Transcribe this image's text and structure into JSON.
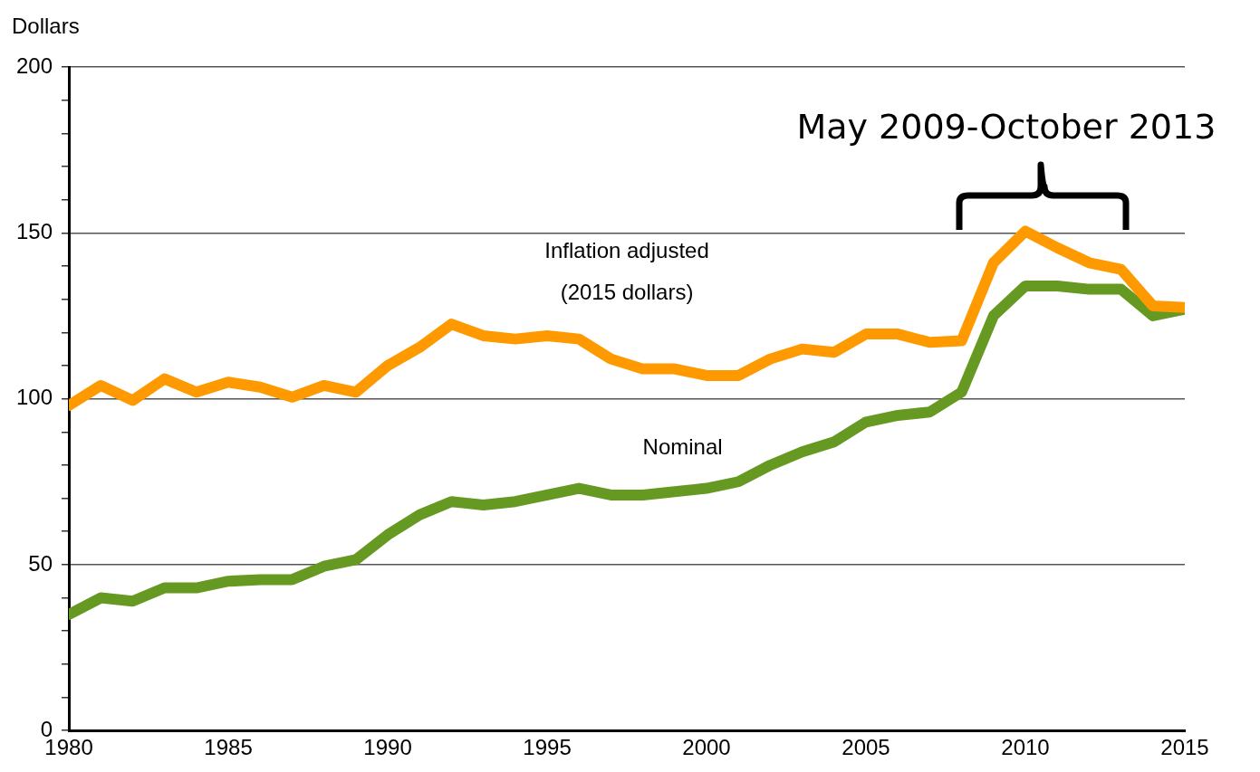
{
  "chart_data": {
    "type": "line",
    "ylabel": "Dollars",
    "annotations": [
      "May 2009-October 2013"
    ],
    "x": [
      1980,
      1981,
      1982,
      1983,
      1984,
      1985,
      1986,
      1987,
      1988,
      1989,
      1990,
      1991,
      1992,
      1993,
      1994,
      1995,
      1996,
      1997,
      1998,
      1999,
      2000,
      2001,
      2002,
      2003,
      2004,
      2005,
      2006,
      2007,
      2008,
      2009,
      2010,
      2011,
      2012,
      2013,
      2014,
      2015
    ],
    "series": [
      {
        "name": "Inflation adjusted (2015 dollars)",
        "color": "#ff9900",
        "values": [
          98,
          104,
          99.5,
          106,
          102,
          105,
          103.5,
          100.5,
          104,
          102,
          110,
          115.5,
          122.5,
          119,
          118,
          119,
          118,
          112,
          109,
          109,
          107,
          107,
          112,
          115,
          114,
          119.5,
          119.5,
          117,
          117.5,
          141,
          150.5,
          145.5,
          141,
          139,
          128,
          127.5
        ]
      },
      {
        "name": "Nominal",
        "color": "#669922",
        "values": [
          35,
          40,
          39,
          43,
          43,
          45,
          45.5,
          45.5,
          49.5,
          51.5,
          59,
          65,
          69,
          68,
          69,
          71,
          73,
          71,
          71,
          72,
          73,
          75,
          80,
          84,
          87,
          93,
          95,
          96,
          102,
          125,
          134,
          134,
          133,
          133,
          125,
          127
        ]
      }
    ],
    "xlim": [
      1980,
      2015
    ],
    "xticks": [
      1980,
      1985,
      1990,
      1995,
      2000,
      2005,
      2010,
      2015
    ],
    "ylim": [
      0,
      200
    ],
    "yticks": [
      0,
      {
        "value": 10,
        "label": null
      },
      {
        "value": 20,
        "label": null
      },
      {
        "value": 30,
        "label": null
      },
      {
        "value": 40,
        "label": null
      },
      50,
      {
        "value": 60,
        "label": null
      },
      {
        "value": 70,
        "label": null
      },
      {
        "value": 80,
        "label": null
      },
      {
        "value": 90,
        "label": null
      },
      100,
      {
        "value": 110,
        "label": null
      },
      {
        "value": 120,
        "label": null
      },
      {
        "value": 130,
        "label": null
      },
      {
        "value": 140,
        "label": null
      },
      150,
      {
        "value": 160,
        "label": null
      },
      {
        "value": 170,
        "label": null
      },
      {
        "value": 180,
        "label": null
      },
      {
        "value": 190,
        "label": null
      },
      200
    ],
    "grid": "y",
    "legend": false,
    "marker": "none",
    "line_style": "solid"
  }
}
